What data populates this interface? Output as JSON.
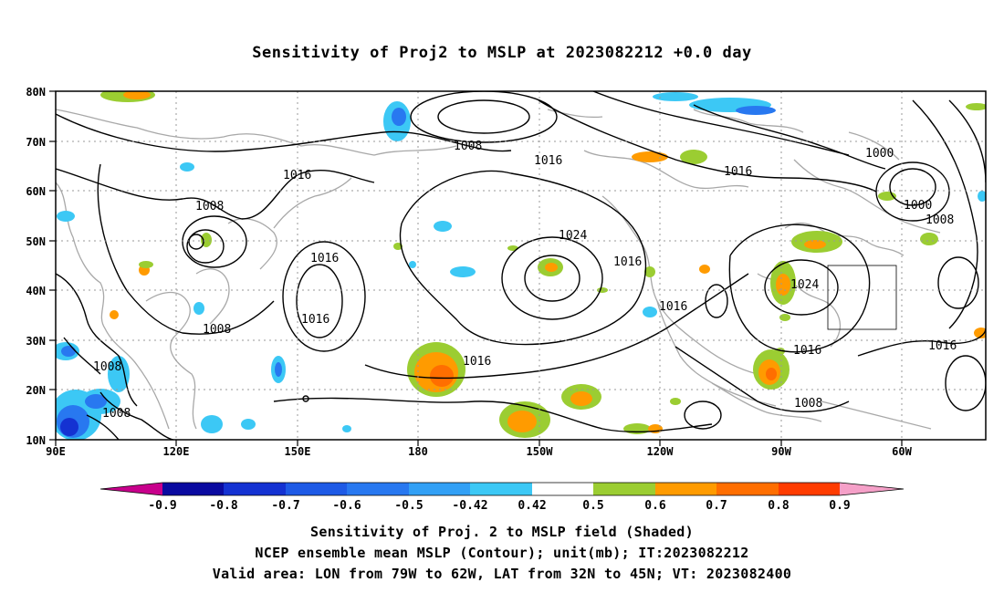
{
  "title": "Sensitivity of Proj2 to MSLP at 2023082212 +0.0 day",
  "lat_labels": [
    "80N",
    "70N",
    "60N",
    "50N",
    "40N",
    "30N",
    "20N",
    "10N"
  ],
  "lon_labels": [
    "90E",
    "120E",
    "150E",
    "180",
    "150W",
    "120W",
    "90W",
    "60W"
  ],
  "contour_labels": [
    "1008",
    "1016",
    "1008",
    "1016",
    "1024",
    "1016",
    "1016",
    "1016",
    "1008",
    "1016",
    "1008",
    "1008",
    "1016",
    "1016",
    "1024",
    "1016",
    "1008",
    "1000",
    "1000",
    "1008",
    "1016"
  ],
  "colorbar": {
    "labels": [
      "-0.9",
      "-0.8",
      "-0.7",
      "-0.6",
      "-0.5",
      "-0.42",
      "0.42",
      "0.5",
      "0.6",
      "0.7",
      "0.8",
      "0.9"
    ],
    "colors": [
      "#c8008c",
      "#0a0aa0",
      "#1432d2",
      "#1e5ae6",
      "#2878f0",
      "#32a0f5",
      "#3cc8f5",
      "#ffffff",
      "#9bcd32",
      "#ff9b00",
      "#ff6e00",
      "#ff3c00",
      "#ff0000",
      "#f5a0c8"
    ]
  },
  "captions": [
    "Sensitivity of Proj. 2 to MSLP field (Shaded)",
    "NCEP ensemble mean MSLP (Contour); unit(mb); IT:2023082212",
    "Valid area: LON from 79W to 62W, LAT from 32N to 45N; VT: 2023082400"
  ]
}
